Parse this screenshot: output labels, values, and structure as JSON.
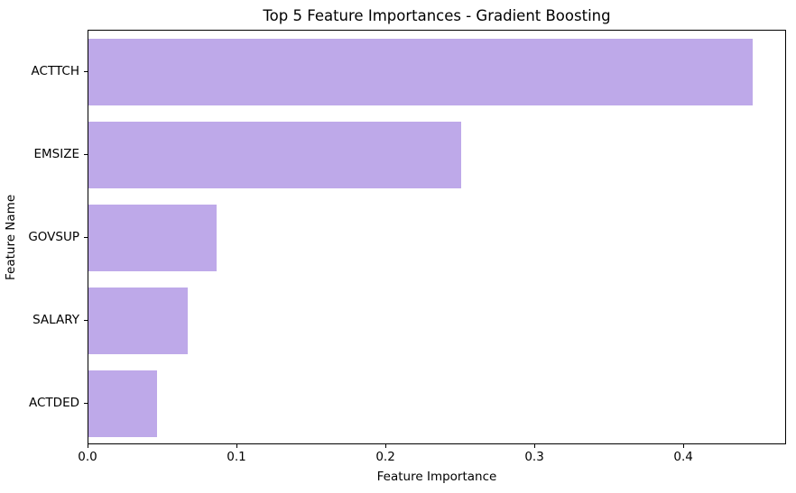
{
  "chart_data": {
    "type": "bar",
    "orientation": "horizontal",
    "title": "Top 5 Feature Importances - Gradient Boosting",
    "xlabel": "Feature Importance",
    "ylabel": "Feature Name",
    "categories": [
      "ACTTCH",
      "EMSIZE",
      "GOVSUP",
      "SALARY",
      "ACTDED"
    ],
    "values": [
      0.447,
      0.251,
      0.086,
      0.067,
      0.046
    ],
    "xticks": [
      0.0,
      0.1,
      0.2,
      0.3,
      0.4
    ],
    "xlim": [
      0,
      0.469
    ],
    "grid": false,
    "legend": null,
    "bar_color": "#BEA9E9",
    "spine_color": "#000000",
    "text_color": "#000000",
    "background_color": "#ffffff",
    "bar_relative_height": 0.8
  }
}
